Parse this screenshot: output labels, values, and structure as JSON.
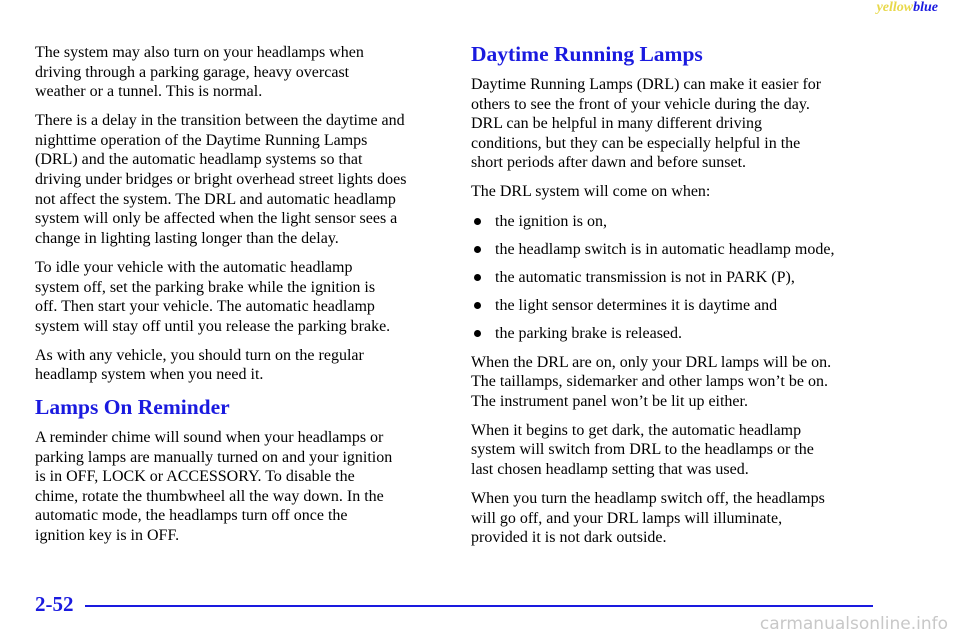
{
  "header": {
    "left": "yellow",
    "right": "blue"
  },
  "left_column": [
    {
      "type": "p",
      "lines": [
        "The system may also turn on your headlamps when",
        "driving through a parking garage, heavy overcast",
        "weather or a tunnel. This is normal."
      ]
    },
    {
      "type": "p",
      "lines": [
        "There is a delay in the transition between the daytime and",
        "nighttime operation of the Daytime Running Lamps",
        "(DRL) and the automatic headlamp systems so that",
        "driving under bridges or bright overhead street lights does",
        "not affect the system. The DRL and automatic headlamp",
        "system will only be affected when the light sensor sees a",
        "change in lighting lasting longer than the delay."
      ]
    },
    {
      "type": "p",
      "lines": [
        "To idle your vehicle with the automatic headlamp",
        "system off, set the parking brake while the ignition is",
        "off. Then start your vehicle. The automatic headlamp",
        "system will stay off until you release the parking brake."
      ]
    },
    {
      "type": "p",
      "lines": [
        "As with any vehicle, you should turn on the regular",
        "headlamp system when you need it."
      ]
    },
    {
      "type": "h",
      "text": "Lamps On Reminder"
    },
    {
      "type": "p",
      "lines": [
        "A reminder chime will sound when your headlamps or",
        "parking lamps are manually turned on and your ignition",
        "is in OFF, LOCK or ACCESSORY. To disable the",
        "chime, rotate the thumbwheel all the way down. In the",
        "automatic mode, the headlamps turn off once the",
        "ignition key is in OFF."
      ]
    }
  ],
  "right_column": [
    {
      "type": "h",
      "text": "Daytime Running Lamps"
    },
    {
      "type": "p",
      "lines": [
        "Daytime Running Lamps (DRL) can make it easier for",
        "others to see the front of your vehicle during the day.",
        "DRL can be helpful in many different driving",
        "conditions, but they can be especially helpful in the",
        "short periods after dawn and before sunset."
      ]
    },
    {
      "type": "p",
      "lines": [
        "The DRL system will come on when:"
      ]
    },
    {
      "type": "ul",
      "items": [
        "the ignition is on,",
        "the headlamp switch is in automatic headlamp mode,",
        "the automatic transmission is not in PARK (P),",
        "the light sensor determines it is daytime and",
        "the parking brake is released."
      ]
    },
    {
      "type": "p",
      "lines": [
        "When the DRL are on, only your DRL lamps will be on.",
        "The taillamps, sidemarker and other lamps won’t be on.",
        "The instrument panel won’t be lit up either."
      ]
    },
    {
      "type": "p",
      "lines": [
        "When it begins to get dark, the automatic headlamp",
        "system will switch from DRL to the headlamps or the",
        "last chosen headlamp setting that was used."
      ]
    },
    {
      "type": "p",
      "lines": [
        "When you turn the headlamp switch off, the headlamps",
        "will go off, and your DRL lamps will illuminate,",
        "provided it is not dark outside."
      ]
    }
  ],
  "footer": {
    "page": "2-52",
    "watermark": "carmanualsonline.info"
  }
}
